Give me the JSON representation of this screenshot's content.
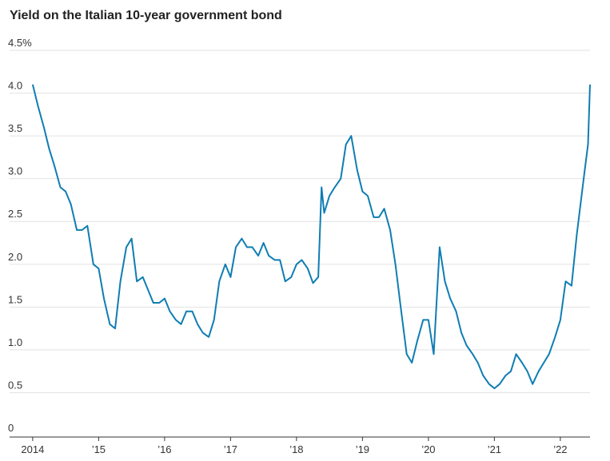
{
  "chart_data": {
    "type": "line",
    "title": "Yield on the Italian 10-year government bond",
    "x": [
      2014.0,
      2014.08,
      2014.17,
      2014.25,
      2014.33,
      2014.42,
      2014.5,
      2014.58,
      2014.67,
      2014.75,
      2014.83,
      2014.92,
      2015.0,
      2015.08,
      2015.17,
      2015.25,
      2015.33,
      2015.42,
      2015.5,
      2015.58,
      2015.67,
      2015.75,
      2015.83,
      2015.92,
      2016.0,
      2016.08,
      2016.17,
      2016.25,
      2016.33,
      2016.42,
      2016.5,
      2016.58,
      2016.67,
      2016.75,
      2016.83,
      2016.92,
      2017.0,
      2017.08,
      2017.17,
      2017.25,
      2017.33,
      2017.42,
      2017.5,
      2017.58,
      2017.67,
      2017.75,
      2017.83,
      2017.92,
      2018.0,
      2018.08,
      2018.17,
      2018.25,
      2018.33,
      2018.38,
      2018.42,
      2018.5,
      2018.58,
      2018.67,
      2018.75,
      2018.83,
      2018.92,
      2019.0,
      2019.08,
      2019.17,
      2019.25,
      2019.33,
      2019.42,
      2019.5,
      2019.58,
      2019.67,
      2019.75,
      2019.83,
      2019.92,
      2020.0,
      2020.08,
      2020.17,
      2020.25,
      2020.33,
      2020.42,
      2020.5,
      2020.58,
      2020.67,
      2020.75,
      2020.83,
      2020.92,
      2021.0,
      2021.08,
      2021.17,
      2021.25,
      2021.33,
      2021.42,
      2021.5,
      2021.58,
      2021.67,
      2021.75,
      2021.83,
      2021.92,
      2022.0,
      2022.08,
      2022.17,
      2022.25,
      2022.33,
      2022.37,
      2022.42,
      2022.45
    ],
    "series": [
      {
        "name": "Italian 10-year yield",
        "color": "#0f7db3",
        "values": [
          4.1,
          3.85,
          3.6,
          3.35,
          3.15,
          2.9,
          2.85,
          2.7,
          2.4,
          2.4,
          2.45,
          2.0,
          1.95,
          1.6,
          1.3,
          1.25,
          1.8,
          2.2,
          2.3,
          1.8,
          1.85,
          1.7,
          1.55,
          1.55,
          1.6,
          1.45,
          1.35,
          1.3,
          1.45,
          1.45,
          1.3,
          1.2,
          1.15,
          1.35,
          1.8,
          2.0,
          1.85,
          2.2,
          2.3,
          2.2,
          2.2,
          2.1,
          2.25,
          2.1,
          2.05,
          2.05,
          1.8,
          1.85,
          2.0,
          2.05,
          1.95,
          1.78,
          1.85,
          2.9,
          2.6,
          2.8,
          2.9,
          3.0,
          3.4,
          3.5,
          3.1,
          2.85,
          2.8,
          2.55,
          2.55,
          2.65,
          2.4,
          2.0,
          1.5,
          0.95,
          0.85,
          1.1,
          1.35,
          1.35,
          0.95,
          2.2,
          1.8,
          1.6,
          1.45,
          1.2,
          1.05,
          0.95,
          0.85,
          0.7,
          0.6,
          0.55,
          0.6,
          0.7,
          0.75,
          0.95,
          0.85,
          0.75,
          0.6,
          0.75,
          0.85,
          0.95,
          1.15,
          1.35,
          1.8,
          1.75,
          2.35,
          2.85,
          3.1,
          3.4,
          4.1
        ]
      }
    ],
    "xlim": [
      2013.65,
      2022.45
    ],
    "xticks": [
      {
        "value": 2014,
        "label": "2014"
      },
      {
        "value": 2015,
        "label": "’15"
      },
      {
        "value": 2016,
        "label": "’16"
      },
      {
        "value": 2017,
        "label": "’17"
      },
      {
        "value": 2018,
        "label": "’18"
      },
      {
        "value": 2019,
        "label": "’19"
      },
      {
        "value": 2020,
        "label": "’20"
      },
      {
        "value": 2021,
        "label": "’21"
      },
      {
        "value": 2022,
        "label": "’22"
      }
    ],
    "ylim": [
      0,
      4.5
    ],
    "yticks": [
      0,
      0.5,
      {
        "value": 1,
        "label": "1.0"
      },
      1.5,
      {
        "value": 2,
        "label": "2.0"
      },
      2.5,
      {
        "value": 3,
        "label": "3.0"
      },
      3.5,
      {
        "value": 4,
        "label": "4.0"
      },
      {
        "value": 4.5,
        "label": "4.5%"
      }
    ],
    "grid": true
  }
}
